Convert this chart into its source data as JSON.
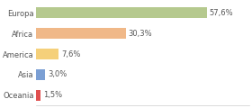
{
  "categories": [
    "Europa",
    "Africa",
    "America",
    "Asia",
    "Oceania"
  ],
  "values": [
    57.6,
    30.3,
    7.6,
    3.0,
    1.5
  ],
  "labels": [
    "57,6%",
    "30,3%",
    "7,6%",
    "3,0%",
    "1,5%"
  ],
  "bar_colors": [
    "#b5c98e",
    "#f0b888",
    "#f5d07a",
    "#7b9fd4",
    "#e05050"
  ],
  "background_color": "#ffffff",
  "xlim": [
    0,
    72
  ],
  "label_fontsize": 6.0,
  "tick_fontsize": 6.0,
  "bar_height": 0.52
}
